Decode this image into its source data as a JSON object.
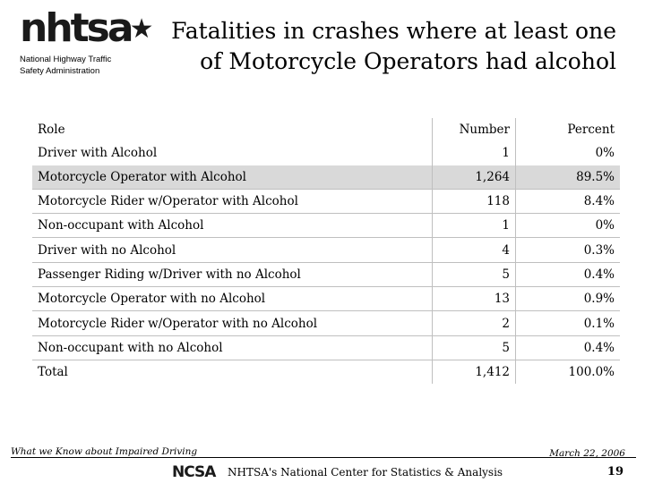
{
  "logo": {
    "word": "nhtsa",
    "line1": "National Highway Traffic",
    "line2": "Safety Administration"
  },
  "title": {
    "line1": "Fatalities in crashes where at least one",
    "line2": "of Motorcycle Operators had alcohol"
  },
  "table": {
    "headers": {
      "role": "Role",
      "number": "Number",
      "percent": "Percent"
    },
    "rows": [
      {
        "role": "Driver with Alcohol",
        "number": "1",
        "percent": "0%"
      },
      {
        "role": "Motorcycle Operator with Alcohol",
        "number": "1,264",
        "percent": "89.5%"
      },
      {
        "role": "Motorcycle Rider w/Operator with Alcohol",
        "number": "118",
        "percent": "8.4%"
      },
      {
        "role": "Non-occupant with Alcohol",
        "number": "1",
        "percent": "0%"
      },
      {
        "role": "Driver with no Alcohol",
        "number": "4",
        "percent": "0.3%"
      },
      {
        "role": "Passenger Riding w/Driver with no Alcohol",
        "number": "5",
        "percent": "0.4%"
      },
      {
        "role": "Motorcycle Operator with no Alcohol",
        "number": "13",
        "percent": "0.9%"
      },
      {
        "role": "Motorcycle Rider w/Operator with no Alcohol",
        "number": "2",
        "percent": "0.1%"
      },
      {
        "role": "Non-occupant with no Alcohol",
        "number": "5",
        "percent": "0.4%"
      },
      {
        "role": "Total",
        "number": "1,412",
        "percent": "100.0%"
      }
    ]
  },
  "footer": {
    "left": "What we Know about Impaired Driving",
    "date": "March 22, 2006",
    "ncsa_logo": "NCSA",
    "center": "NHTSA's National Center for Statistics & Analysis",
    "page": "19"
  }
}
